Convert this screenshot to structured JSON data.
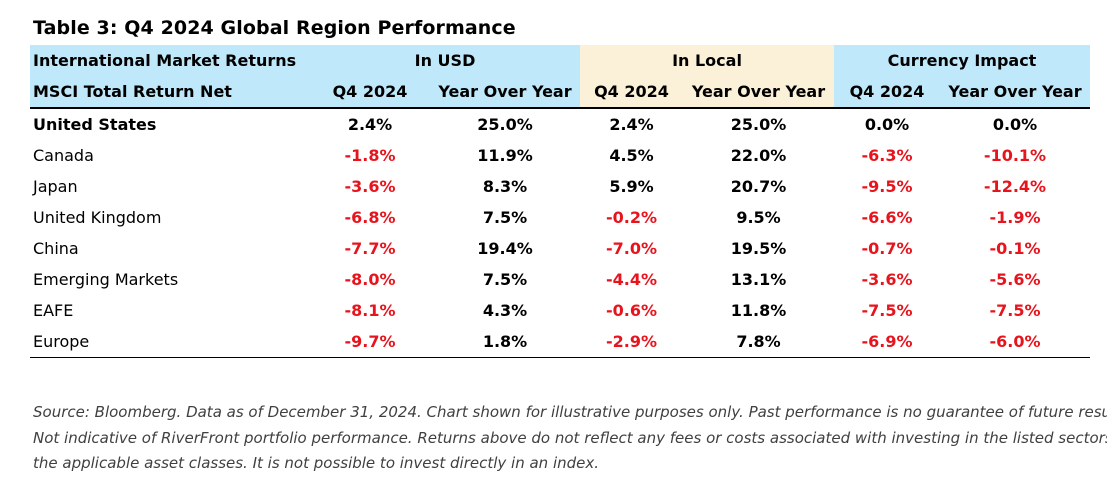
{
  "title": "Table 3: Q4 2024 Global Region Performance",
  "header": {
    "market_returns": "International Market Returns",
    "in_usd": "In USD",
    "in_local": "In Local",
    "currency_impact": "Currency Impact",
    "index_label": "MSCI Total Return Net",
    "q4": "Q4 2024",
    "yoy": "Year Over Year"
  },
  "rows": [
    {
      "region": "United States",
      "usd_q4": "2.4%",
      "usd_yoy": "25.0%",
      "local_q4": "2.4%",
      "local_yoy": "25.0%",
      "cur_q4": "0.0%",
      "cur_yoy": "0.0%"
    },
    {
      "region": "Canada",
      "usd_q4": "-1.8%",
      "usd_yoy": "11.9%",
      "local_q4": "4.5%",
      "local_yoy": "22.0%",
      "cur_q4": "-6.3%",
      "cur_yoy": "-10.1%"
    },
    {
      "region": "Japan",
      "usd_q4": "-3.6%",
      "usd_yoy": "8.3%",
      "local_q4": "5.9%",
      "local_yoy": "20.7%",
      "cur_q4": "-9.5%",
      "cur_yoy": "-12.4%"
    },
    {
      "region": "United Kingdom",
      "usd_q4": "-6.8%",
      "usd_yoy": "7.5%",
      "local_q4": "-0.2%",
      "local_yoy": "9.5%",
      "cur_q4": "-6.6%",
      "cur_yoy": "-1.9%"
    },
    {
      "region": "China",
      "usd_q4": "-7.7%",
      "usd_yoy": "19.4%",
      "local_q4": "-7.0%",
      "local_yoy": "19.5%",
      "cur_q4": "-0.7%",
      "cur_yoy": "-0.1%"
    },
    {
      "region": "Emerging Markets",
      "usd_q4": "-8.0%",
      "usd_yoy": "7.5%",
      "local_q4": "-4.4%",
      "local_yoy": "13.1%",
      "cur_q4": "-3.6%",
      "cur_yoy": "-5.6%"
    },
    {
      "region": "EAFE",
      "usd_q4": "-8.1%",
      "usd_yoy": "4.3%",
      "local_q4": "-0.6%",
      "local_yoy": "11.8%",
      "cur_q4": "-7.5%",
      "cur_yoy": "-7.5%"
    },
    {
      "region": "Europe",
      "usd_q4": "-9.7%",
      "usd_yoy": "1.8%",
      "local_q4": "-2.9%",
      "local_yoy": "7.8%",
      "cur_q4": "-6.9%",
      "cur_yoy": "-6.0%"
    }
  ],
  "source": [
    "Source: Bloomberg. Data as of December 31, 2024. Chart shown for illustrative purposes only. Past performance is no guarantee of future results.",
    "Not indicative of RiverFront portfolio performance. Returns above do not reflect any fees or costs associated with investing in the listed sectors.",
    "the applicable asset classes. It is not possible to invest directly in an index."
  ],
  "colors": {
    "header_blue": "#bfe9fa",
    "header_tan": "#fbf0d8",
    "negative_red": "#e8141d"
  }
}
